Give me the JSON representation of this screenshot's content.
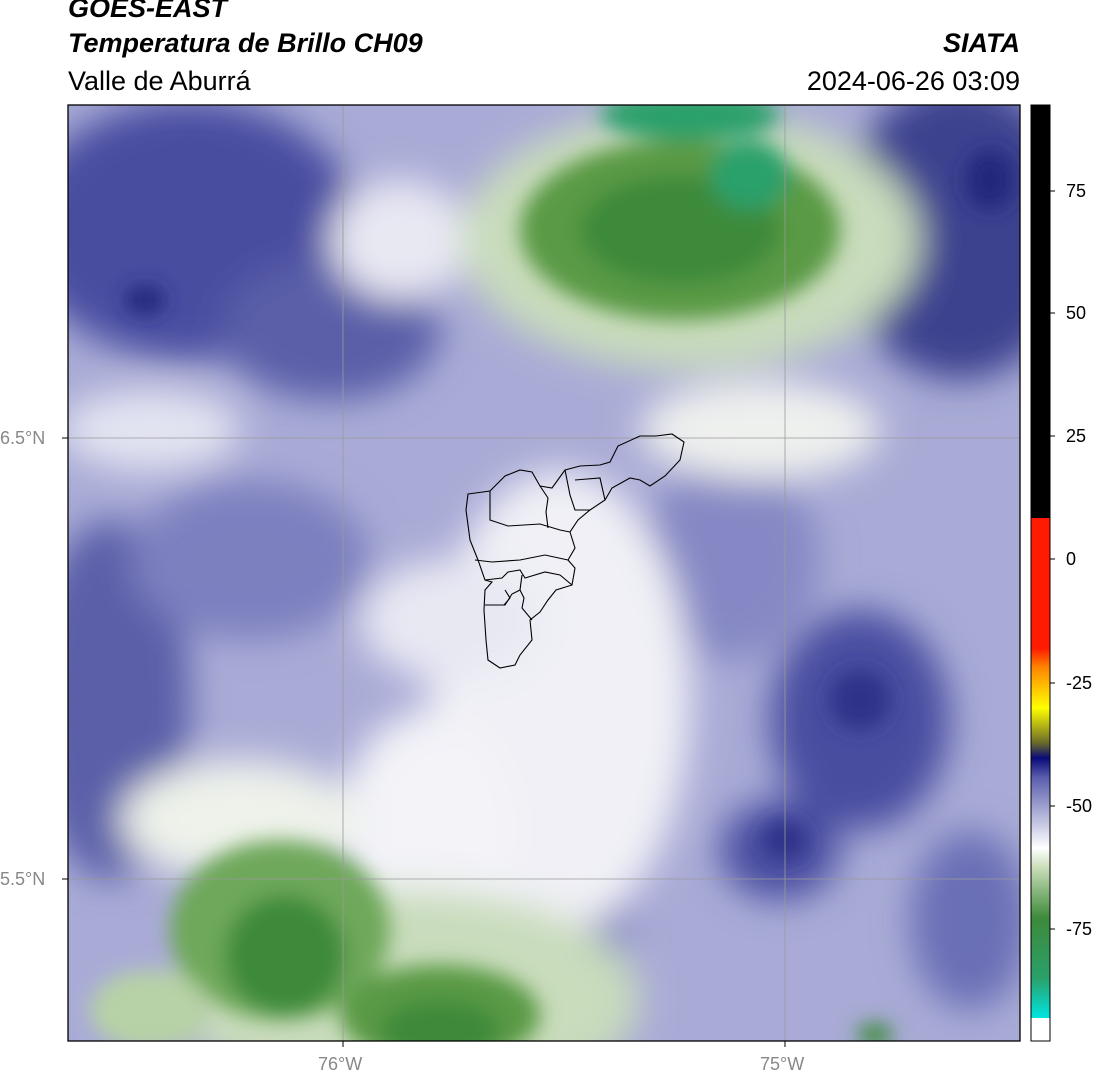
{
  "header": {
    "line1": "GOES-EAST",
    "line2": "Temperatura de Brillo CH09",
    "line3": "Valle de Aburrá",
    "org": "SIATA",
    "timestamp": "2024-06-26 03:09"
  },
  "map": {
    "lat_labels": [
      "6.5°N",
      "5.5°N"
    ],
    "lon_labels": [
      "76°W",
      "75°W"
    ],
    "colorbar_ticks": [
      "75",
      "50",
      "25",
      "0",
      "-25",
      "-50",
      "-75"
    ],
    "colors": {
      "navy": "#2a2e86",
      "blue": "#6b6fb6",
      "lavender": "#b9bbdc",
      "white": "#f4f4f8",
      "green_light": "#b7d2a6",
      "green": "#5a9a45",
      "green_dark": "#3d8a3a",
      "teal": "#2aa06a"
    }
  }
}
